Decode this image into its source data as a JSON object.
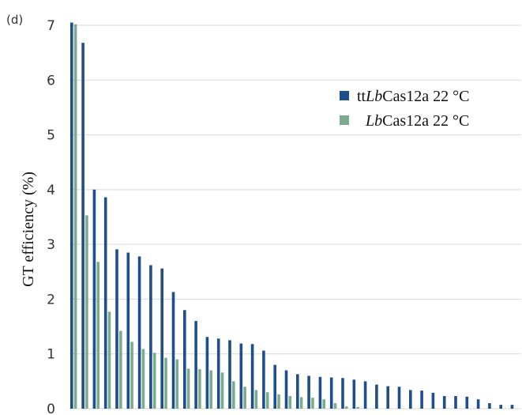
{
  "chart_data": {
    "type": "bar",
    "panel_label": "(d)",
    "title": "",
    "xlabel": "",
    "ylabel": "GT efficiency (%)",
    "ylim": [
      0,
      7
    ],
    "yticks": [
      "0",
      "1",
      "2",
      "3",
      "4",
      "5",
      "6",
      "7"
    ],
    "grid": true,
    "legend_position": "top-right",
    "series": [
      {
        "name": "ttLbCas12a 22 °C",
        "name_plain": "tt",
        "name_italic": "Lb",
        "name_rest": "Cas12a 22 °C",
        "color": "#1f4e8c",
        "values": [
          7.05,
          6.68,
          4.0,
          3.86,
          2.91,
          2.85,
          2.78,
          2.62,
          2.56,
          2.13,
          1.8,
          1.6,
          1.31,
          1.28,
          1.25,
          1.19,
          1.18,
          1.06,
          0.8,
          0.7,
          0.63,
          0.6,
          0.58,
          0.57,
          0.56,
          0.53,
          0.5,
          0.44,
          0.41,
          0.4,
          0.34,
          0.33,
          0.29,
          0.23,
          0.23,
          0.22,
          0.17,
          0.1,
          0.07,
          0.07
        ]
      },
      {
        "name": "LbCas12a 22 °C",
        "name_plain": "",
        "name_italic": "Lb",
        "name_rest": "Cas12a 22 °C",
        "color": "#7aab8c",
        "values": [
          7.02,
          3.53,
          2.68,
          1.77,
          1.42,
          1.22,
          1.09,
          1.02,
          0.93,
          0.9,
          0.73,
          0.72,
          0.7,
          0.66,
          0.5,
          0.4,
          0.34,
          0.3,
          0.26,
          0.23,
          0.21,
          0.2,
          0.17,
          0.1,
          0.04,
          0.03,
          0,
          0,
          0,
          0,
          0,
          0,
          0,
          0,
          0,
          0,
          0,
          0,
          0,
          0
        ]
      }
    ]
  }
}
